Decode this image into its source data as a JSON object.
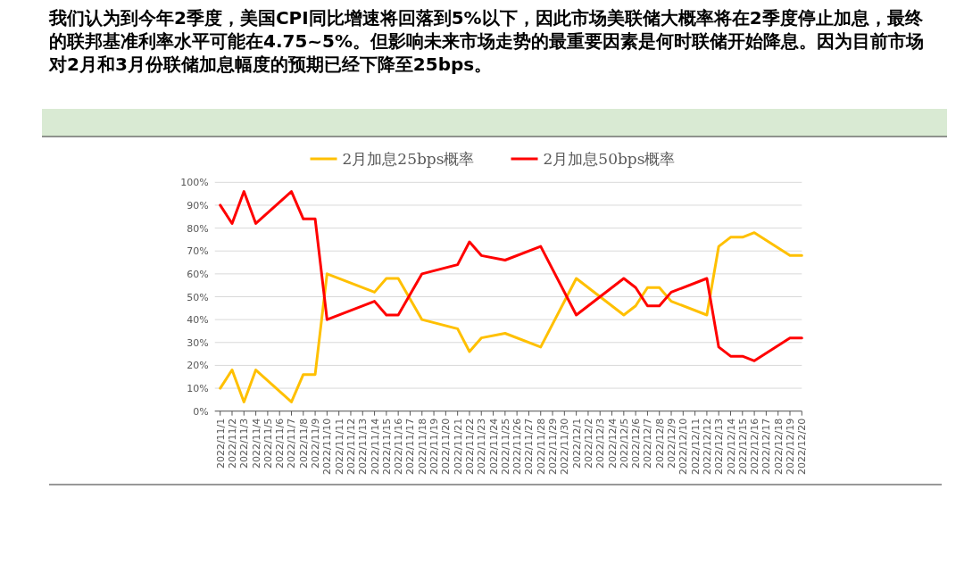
{
  "chart_data": {
    "type": "line",
    "title": "我们认为到今年2季度，美国CPI同比增速将回落到5%以下，因此市场美联储大概率将在2季度停止加息，最终的联邦基准利率水平可能在4.75~5%。但影响未来市场走势的最重要因素是何时联储开始降息。因为目前市场对2月和3月份联储加息幅度的预期已经下降至25bps。",
    "categories": [
      "2022/11/1",
      "2022/11/2",
      "2022/11/3",
      "2022/11/4",
      "2022/11/5",
      "2022/11/6",
      "2022/11/7",
      "2022/11/8",
      "2022/11/9",
      "2022/11/10",
      "2022/11/11",
      "2022/11/12",
      "2022/11/13",
      "2022/11/14",
      "2022/11/15",
      "2022/11/16",
      "2022/11/17",
      "2022/11/18",
      "2022/11/19",
      "2022/11/20",
      "2022/11/21",
      "2022/11/22",
      "2022/11/23",
      "2022/11/24",
      "2022/11/25",
      "2022/11/26",
      "2022/11/27",
      "2022/11/28",
      "2022/11/29",
      "2022/11/30",
      "2022/12/1",
      "2022/12/2",
      "2022/12/3",
      "2022/12/4",
      "2022/12/5",
      "2022/12/6",
      "2022/12/7",
      "2022/12/8",
      "2022/12/9",
      "2022/12/10",
      "2022/12/11",
      "2022/12/12",
      "2022/12/13",
      "2022/12/14",
      "2022/12/15",
      "2022/12/16",
      "2022/12/17",
      "2022/12/18",
      "2022/12/19",
      "2022/12/20"
    ],
    "series": [
      {
        "name": "2月加息25bps概率",
        "color": "#ffc000",
        "values": [
          10,
          18,
          4,
          18,
          null,
          null,
          4,
          16,
          16,
          60,
          null,
          null,
          null,
          52,
          58,
          58,
          null,
          40,
          null,
          null,
          36,
          26,
          32,
          null,
          34,
          null,
          null,
          28,
          null,
          null,
          58,
          null,
          null,
          null,
          42,
          46,
          54,
          54,
          48,
          null,
          null,
          42,
          72,
          76,
          76,
          78,
          null,
          null,
          68,
          68
        ]
      },
      {
        "name": "2月加息50bps概率",
        "color": "#ff0000",
        "values": [
          90,
          82,
          96,
          82,
          null,
          null,
          96,
          84,
          84,
          40,
          null,
          null,
          null,
          48,
          42,
          42,
          null,
          60,
          null,
          null,
          64,
          74,
          68,
          null,
          66,
          null,
          null,
          72,
          null,
          null,
          42,
          null,
          null,
          null,
          58,
          54,
          46,
          46,
          52,
          null,
          null,
          58,
          28,
          24,
          24,
          22,
          null,
          null,
          32,
          32
        ]
      }
    ],
    "ylim": [
      0,
      100
    ],
    "yticks": [
      {
        "value": 0,
        "label": "0%"
      },
      {
        "value": 10,
        "label": "10%"
      },
      {
        "value": 20,
        "label": "20%"
      },
      {
        "value": 30,
        "label": "30%"
      },
      {
        "value": 40,
        "label": "40%"
      },
      {
        "value": 50,
        "label": "50%"
      },
      {
        "value": 60,
        "label": "60%"
      },
      {
        "value": 70,
        "label": "70%"
      },
      {
        "value": 80,
        "label": "80%"
      },
      {
        "value": 90,
        "label": "90%"
      },
      {
        "value": 100,
        "label": "100%"
      }
    ],
    "grid": "y",
    "legend": "top",
    "marker": "none",
    "line_style": "solid"
  }
}
